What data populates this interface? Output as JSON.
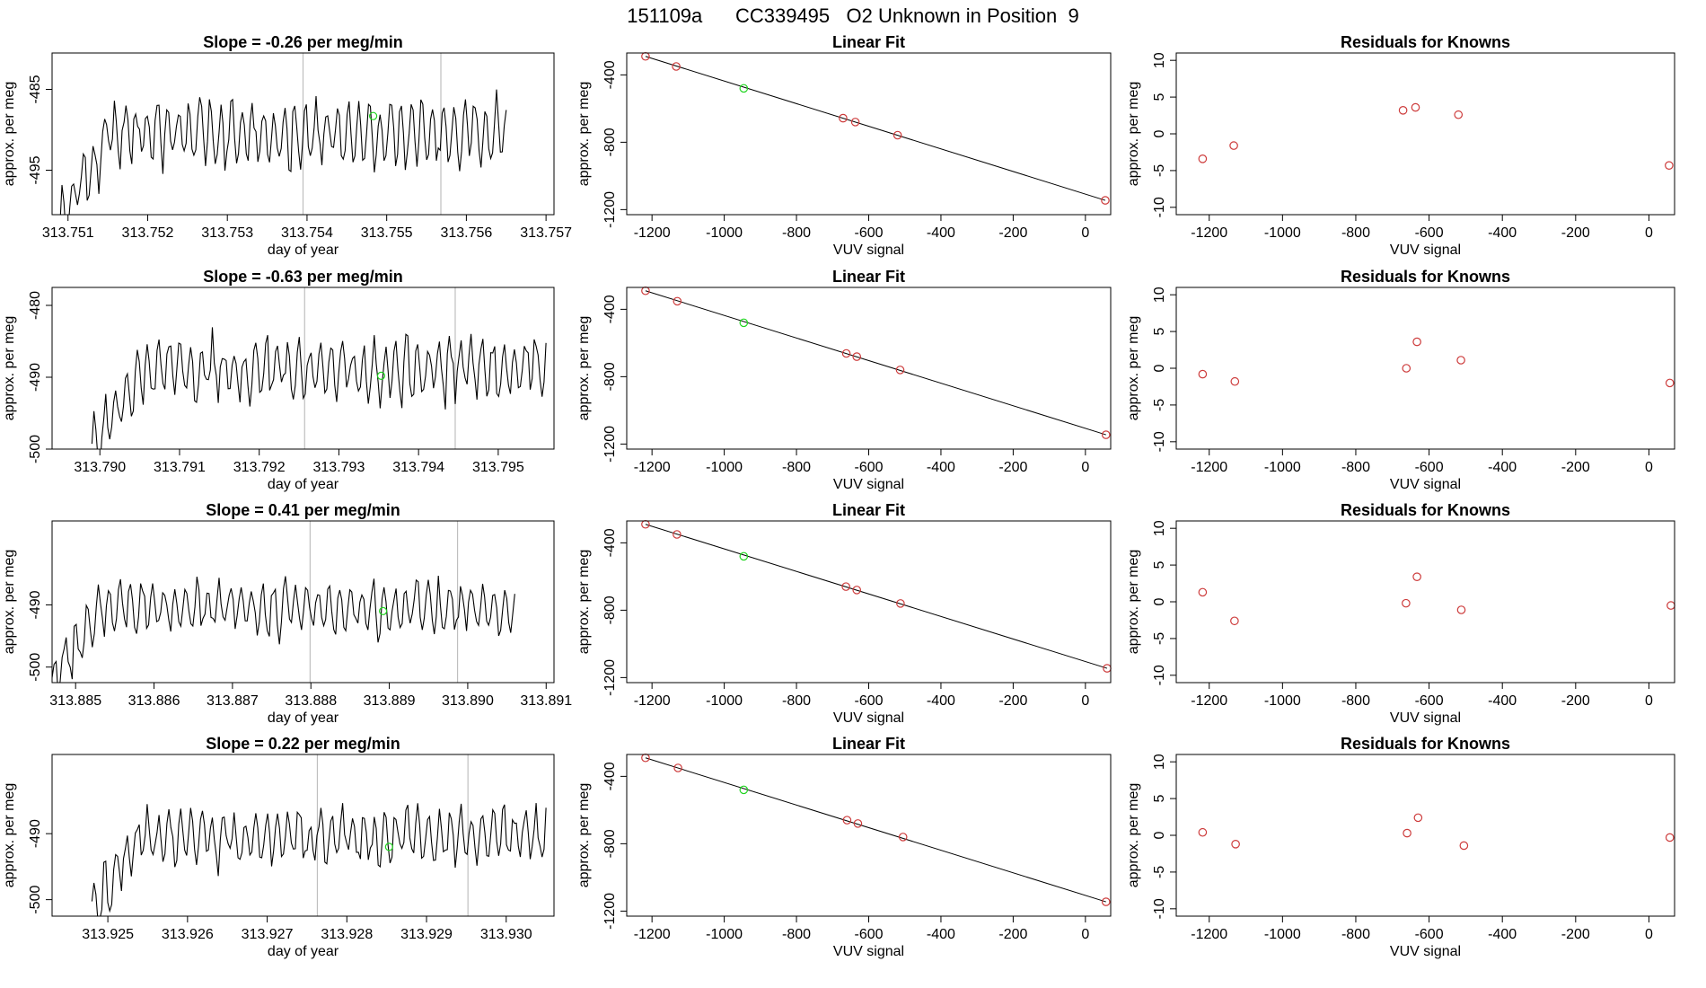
{
  "suptitle": "151109a      CC339495   O2 Unknown in Position  9",
  "colors": {
    "trace": "#000000",
    "marker": "#1fd51f",
    "point": "#cd3b3b",
    "vline": "#bfbfbf",
    "axis": "#000000"
  },
  "chart_data": [
    {
      "type": "line",
      "name": "row1-timeseries",
      "title": "Slope =  -0.26  per meg/min",
      "xlabel": "day of year",
      "ylabel": "approx. per meg",
      "xlim": [
        313.7508,
        313.7571
      ],
      "ylim": [
        -500.5,
        -480.5
      ],
      "xticks": [
        "313.751",
        "313.752",
        "313.753",
        "313.754",
        "313.755",
        "313.756",
        "313.757"
      ],
      "yticks": [
        "-485",
        "-495"
      ],
      "series": [
        {
          "name": "signal",
          "x_start": 313.7509,
          "x_end": 313.7565,
          "base": -490.5,
          "amp": 3.6,
          "seed": 11
        }
      ],
      "vlines": [
        313.75395,
        313.75568
      ],
      "marker": {
        "x": 313.75483,
        "y": -488.3
      }
    },
    {
      "type": "scatter",
      "name": "row1-linear-fit",
      "title": "Linear Fit",
      "xlabel": "VUV signal",
      "ylabel": "approx. per meg",
      "xlim": [
        -1270,
        70
      ],
      "ylim": [
        -1230,
        -270
      ],
      "xticks": [
        "-1200",
        "-1000",
        "-800",
        "-600",
        "-400",
        "-200",
        "0"
      ],
      "yticks": [
        "-400",
        "-800",
        "-1200"
      ],
      "points": [
        [
          -1218,
          -290
        ],
        [
          -1133,
          -350
        ],
        [
          -671,
          -657
        ],
        [
          -637,
          -680
        ],
        [
          -520,
          -758
        ],
        [
          55,
          -1145
        ]
      ],
      "unknown": [
        [
          -946,
          -480
        ]
      ],
      "fit_line": [
        [
          -1218,
          -290
        ],
        [
          55,
          -1145
        ]
      ]
    },
    {
      "type": "scatter",
      "name": "row1-residuals",
      "title": "Residuals for Knowns",
      "xlabel": "VUV signal",
      "ylabel": "approx. per meg",
      "xlim": [
        -1290,
        70
      ],
      "ylim": [
        -11,
        11
      ],
      "xticks": [
        "-1200",
        "-1000",
        "-800",
        "-600",
        "-400",
        "-200",
        "0"
      ],
      "yticks": [
        "10",
        "5",
        "0",
        "-5",
        "-10"
      ],
      "points": [
        [
          -1218,
          -3.4
        ],
        [
          -1133,
          -1.6
        ],
        [
          -671,
          3.2
        ],
        [
          -637,
          3.6
        ],
        [
          -520,
          2.6
        ],
        [
          55,
          -4.3
        ]
      ]
    },
    {
      "type": "line",
      "name": "row2-timeseries",
      "title": "Slope =  -0.63  per meg/min",
      "xlabel": "day of year",
      "ylabel": "approx. per meg",
      "xlim": [
        313.7894,
        313.7957
      ],
      "ylim": [
        -500,
        -477.5
      ],
      "xticks": [
        "313.790",
        "313.791",
        "313.792",
        "313.793",
        "313.794",
        "313.795"
      ],
      "yticks": [
        "-480",
        "-490",
        "-500"
      ],
      "series": [
        {
          "name": "signal",
          "x_start": 313.7899,
          "x_end": 313.7956,
          "base": -488.8,
          "amp": 3.8,
          "seed": 23
        }
      ],
      "vlines": [
        313.79257,
        313.79446
      ],
      "marker": {
        "x": 313.79353,
        "y": -489.8
      }
    },
    {
      "type": "scatter",
      "name": "row2-linear-fit",
      "title": "Linear Fit",
      "xlabel": "VUV signal",
      "ylabel": "approx. per meg",
      "xlim": [
        -1270,
        70
      ],
      "ylim": [
        -1230,
        -270
      ],
      "xticks": [
        "-1200",
        "-1000",
        "-800",
        "-600",
        "-400",
        "-200",
        "0"
      ],
      "yticks": [
        "-400",
        "-800",
        "-1200"
      ],
      "points": [
        [
          -1218,
          -290
        ],
        [
          -1130,
          -352
        ],
        [
          -662,
          -662
        ],
        [
          -633,
          -681
        ],
        [
          -513,
          -760
        ],
        [
          57,
          -1145
        ]
      ],
      "unknown": [
        [
          -946,
          -480
        ]
      ],
      "fit_line": [
        [
          -1218,
          -290
        ],
        [
          57,
          -1145
        ]
      ]
    },
    {
      "type": "scatter",
      "name": "row2-residuals",
      "title": "Residuals for Knowns",
      "xlabel": "VUV signal",
      "ylabel": "approx. per meg",
      "xlim": [
        -1290,
        70
      ],
      "ylim": [
        -11,
        11
      ],
      "xticks": [
        "-1200",
        "-1000",
        "-800",
        "-600",
        "-400",
        "-200",
        "0"
      ],
      "yticks": [
        "10",
        "5",
        "0",
        "-5",
        "-10"
      ],
      "points": [
        [
          -1218,
          -0.8
        ],
        [
          -1130,
          -1.8
        ],
        [
          -662,
          0.0
        ],
        [
          -633,
          3.6
        ],
        [
          -513,
          1.1
        ],
        [
          57,
          -2.0
        ]
      ]
    },
    {
      "type": "line",
      "name": "row3-timeseries",
      "title": "Slope =  0.41  per meg/min",
      "xlabel": "day of year",
      "ylabel": "approx. per meg",
      "xlim": [
        313.8847,
        313.8911
      ],
      "ylim": [
        -502.5,
        -476.5
      ],
      "xticks": [
        "313.885",
        "313.886",
        "313.887",
        "313.888",
        "313.889",
        "313.890",
        "313.891"
      ],
      "yticks": [
        "-490",
        "-500"
      ],
      "series": [
        {
          "name": "signal",
          "x_start": 313.8847,
          "x_end": 313.8906,
          "base": -490.5,
          "amp": 3.8,
          "seed": 37
        }
      ],
      "vlines": [
        313.88799,
        313.88987
      ],
      "marker": {
        "x": 313.88892,
        "y": -491.0
      }
    },
    {
      "type": "scatter",
      "name": "row3-linear-fit",
      "title": "Linear Fit",
      "xlabel": "VUV signal",
      "ylabel": "approx. per meg",
      "xlim": [
        -1270,
        70
      ],
      "ylim": [
        -1230,
        -270
      ],
      "xticks": [
        "-1200",
        "-1000",
        "-800",
        "-600",
        "-400",
        "-200",
        "0"
      ],
      "yticks": [
        "-400",
        "-800",
        "-1200"
      ],
      "points": [
        [
          -1218,
          -290
        ],
        [
          -1131,
          -350
        ],
        [
          -663,
          -660
        ],
        [
          -633,
          -680
        ],
        [
          -512,
          -760
        ],
        [
          60,
          -1145
        ]
      ],
      "unknown": [
        [
          -946,
          -480
        ]
      ],
      "fit_line": [
        [
          -1218,
          -290
        ],
        [
          60,
          -1145
        ]
      ]
    },
    {
      "type": "scatter",
      "name": "row3-residuals",
      "title": "Residuals for Knowns",
      "xlabel": "VUV signal",
      "ylabel": "approx. per meg",
      "xlim": [
        -1290,
        70
      ],
      "ylim": [
        -11,
        11
      ],
      "xticks": [
        "-1200",
        "-1000",
        "-800",
        "-600",
        "-400",
        "-200",
        "0"
      ],
      "yticks": [
        "10",
        "5",
        "0",
        "-5",
        "-10"
      ],
      "points": [
        [
          -1218,
          1.3
        ],
        [
          -1131,
          -2.6
        ],
        [
          -663,
          -0.2
        ],
        [
          -633,
          3.4
        ],
        [
          -512,
          -1.1
        ],
        [
          60,
          -0.5
        ]
      ]
    },
    {
      "type": "line",
      "name": "row4-timeseries",
      "title": "Slope =  0.22  per meg/min",
      "xlabel": "day of year",
      "ylabel": "approx. per meg",
      "xlim": [
        313.9243,
        313.9306
      ],
      "ylim": [
        -502.5,
        -478
      ],
      "xticks": [
        "313.925",
        "313.926",
        "313.927",
        "313.928",
        "313.929",
        "313.930"
      ],
      "yticks": [
        "-490",
        "-500"
      ],
      "series": [
        {
          "name": "signal",
          "x_start": 313.9248,
          "x_end": 313.9305,
          "base": -490.5,
          "amp": 3.8,
          "seed": 51
        }
      ],
      "vlines": [
        313.92763,
        313.92952
      ],
      "marker": {
        "x": 313.92853,
        "y": -492.0
      }
    },
    {
      "type": "scatter",
      "name": "row4-linear-fit",
      "title": "Linear Fit",
      "xlabel": "VUV signal",
      "ylabel": "approx. per meg",
      "xlim": [
        -1270,
        70
      ],
      "ylim": [
        -1230,
        -270
      ],
      "xticks": [
        "-1200",
        "-1000",
        "-800",
        "-600",
        "-400",
        "-200",
        "0"
      ],
      "yticks": [
        "-400",
        "-800",
        "-1200"
      ],
      "points": [
        [
          -1218,
          -290
        ],
        [
          -1128,
          -350
        ],
        [
          -660,
          -660
        ],
        [
          -630,
          -680
        ],
        [
          -505,
          -760
        ],
        [
          57,
          -1145
        ]
      ],
      "unknown": [
        [
          -946,
          -480
        ]
      ],
      "fit_line": [
        [
          -1218,
          -290
        ],
        [
          57,
          -1145
        ]
      ]
    },
    {
      "type": "scatter",
      "name": "row4-residuals",
      "title": "Residuals for Knowns",
      "xlabel": "VUV signal",
      "ylabel": "approx. per meg",
      "xlim": [
        -1290,
        70
      ],
      "ylim": [
        -11,
        11
      ],
      "xticks": [
        "-1200",
        "-1000",
        "-800",
        "-600",
        "-400",
        "-200",
        "0"
      ],
      "yticks": [
        "10",
        "5",
        "0",
        "-5",
        "-10"
      ],
      "points": [
        [
          -1218,
          0.4
        ],
        [
          -1128,
          -1.2
        ],
        [
          -660,
          0.3
        ],
        [
          -630,
          2.4
        ],
        [
          -505,
          -1.4
        ],
        [
          57,
          -0.3
        ]
      ]
    }
  ]
}
